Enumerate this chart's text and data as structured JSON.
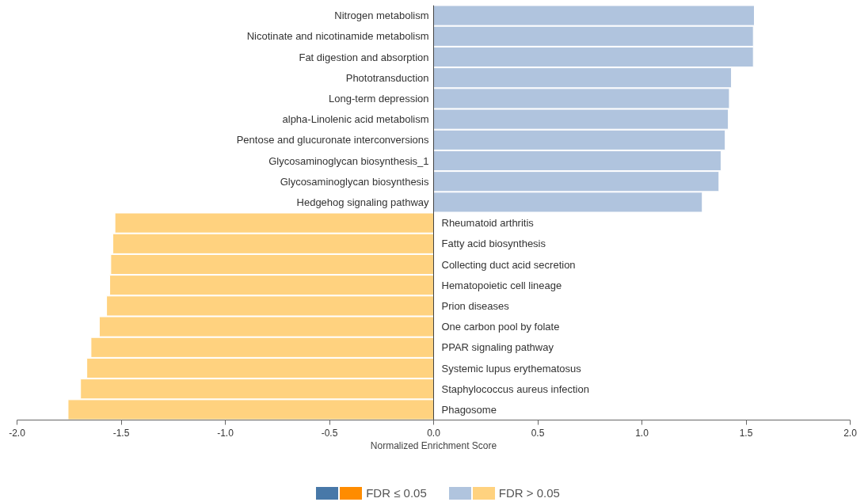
{
  "chart_data": {
    "type": "bar",
    "orientation": "horizontal",
    "xlabel": "Normalized Enrichment Score",
    "categories": [
      "Nitrogen metabolism",
      "Nicotinate and nicotinamide metabolism",
      "Fat digestion and absorption",
      "Phototransduction",
      "Long-term depression",
      "alpha-Linolenic acid metabolism",
      "Pentose and glucuronate interconversions",
      "Glycosaminoglycan biosynthesis_1",
      "Glycosaminoglycan biosynthesis",
      "Hedgehog signaling pathway",
      "Rheumatoid arthritis",
      "Fatty acid biosynthesis",
      "Collecting duct acid secretion",
      "Hematopoietic cell lineage",
      "Prion diseases",
      "One carbon pool by folate",
      "PPAR signaling pathway",
      "Systemic lupus erythematosus",
      "Staphylococcus aureus infection",
      "Phagosome"
    ],
    "series": [
      {
        "name": "FDR ≤ 0.05",
        "colors": [
          "#4878a8",
          "#4878a8",
          "#4878a8",
          "#4878a8",
          "#4878a8",
          "#4878a8",
          "#4878a8",
          "#4878a8",
          "#4878a8",
          "#4878a8",
          "#ff8c00",
          "#ff8c00",
          "#ff8c00",
          "#ff8c00",
          "#ff8c00",
          "#ff8c00",
          "#ff8c00",
          "#ff8c00",
          "#ff8c00",
          "#ff8c00"
        ],
        "values": [
          null,
          null,
          null,
          null,
          null,
          null,
          null,
          null,
          null,
          null,
          null,
          null,
          null,
          null,
          null,
          null,
          null,
          null,
          null,
          null
        ]
      },
      {
        "name": "FDR > 0.05",
        "colors": [
          "#b0c4de",
          "#b0c4de",
          "#b0c4de",
          "#b0c4de",
          "#b0c4de",
          "#b0c4de",
          "#b0c4de",
          "#b0c4de",
          "#b0c4de",
          "#b0c4de",
          "#ffd27f",
          "#ffd27f",
          "#ffd27f",
          "#ffd27f",
          "#ffd27f",
          "#ffd27f",
          "#ffd27f",
          "#ffd27f",
          "#ffd27f",
          "#ffd27f"
        ],
        "values": [
          1.54,
          1.535,
          1.535,
          1.43,
          1.42,
          1.415,
          1.4,
          1.38,
          1.37,
          1.29,
          -1.53,
          -1.54,
          -1.55,
          -1.555,
          -1.57,
          -1.605,
          -1.645,
          -1.665,
          -1.695,
          -1.755
        ]
      }
    ],
    "xlim": [
      -2.0,
      2.0
    ],
    "xticks": [
      {
        "value": -2,
        "label": "-2.0"
      },
      {
        "value": -1.5,
        "label": "-1.5"
      },
      {
        "value": -1,
        "label": "-1.0"
      },
      {
        "value": -0.5,
        "label": "-0.5"
      },
      {
        "value": 0,
        "label": "0.0"
      },
      {
        "value": 0.5,
        "label": "0.5"
      },
      {
        "value": 1,
        "label": "1.0"
      },
      {
        "value": 1.5,
        "label": "1.5"
      },
      {
        "value": 2,
        "label": "2.0"
      }
    ],
    "grid": false,
    "legend": "bottom"
  }
}
